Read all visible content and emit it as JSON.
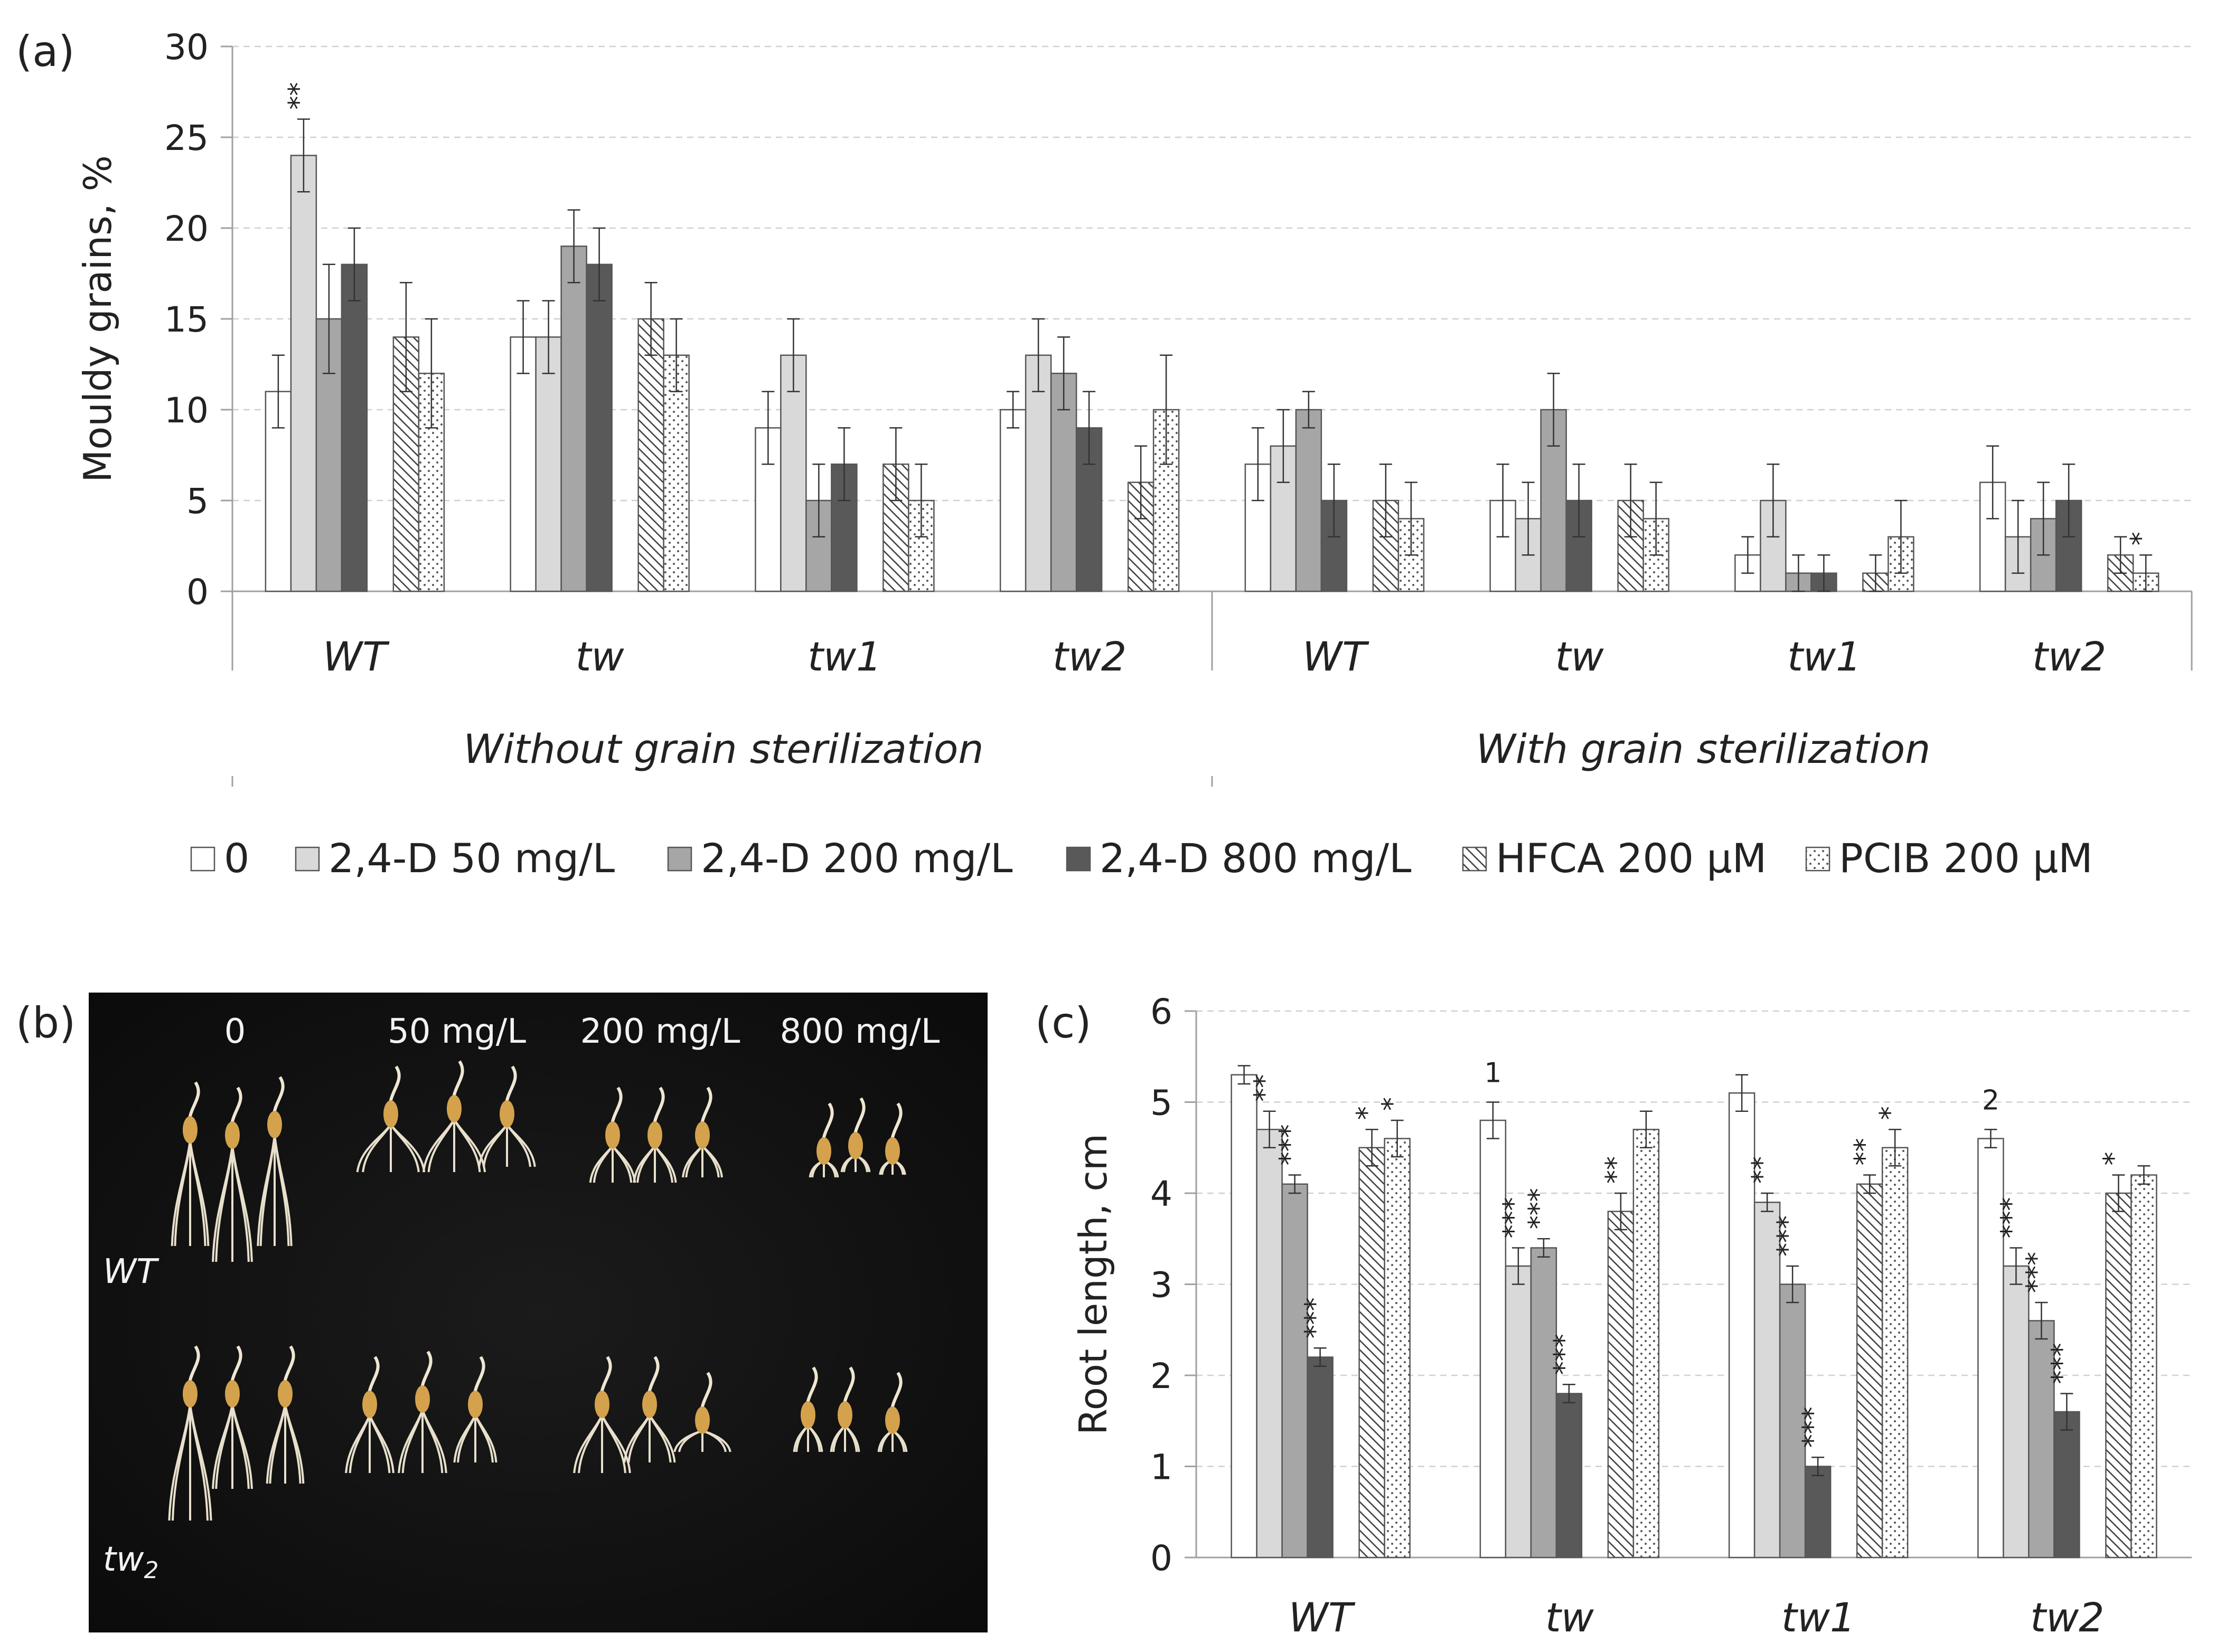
{
  "figure": {
    "panel_a_label": "(a)",
    "panel_b_label": "(b)",
    "panel_c_label": "(c)"
  },
  "legend": {
    "items": [
      {
        "label": "0",
        "pattern": "white"
      },
      {
        "label": "2,4-D 50 mg/L",
        "pattern": "light"
      },
      {
        "label": "2,4-D 200 mg/L",
        "pattern": "medium"
      },
      {
        "label": "2,4-D 800 mg/L",
        "pattern": "dark"
      },
      {
        "label": "HFCA 200 µM",
        "pattern": "hatch"
      },
      {
        "label": "PCIB 200 µM",
        "pattern": "dots"
      }
    ]
  },
  "colors": {
    "white": "#ffffff",
    "light": "#d9d9d9",
    "medium": "#a6a6a6",
    "dark": "#595959",
    "axis": "#a0a0a0",
    "grid": "#d0d0d0"
  },
  "photo": {
    "column_labels": [
      "0",
      "50 mg/L",
      "200 mg/L",
      "800 mg/L"
    ],
    "row_label_wt": "WT",
    "row_label_tw2": "tw",
    "row_label_tw2_sub": "2"
  },
  "chart_data": [
    {
      "type": "bar",
      "panel": "a",
      "title": "",
      "ylabel": "Mouldy grains, %",
      "xlabel": "",
      "ylim": [
        0,
        30
      ],
      "yticks": [
        0,
        5,
        10,
        15,
        20,
        25,
        30
      ],
      "grid": true,
      "categories": [
        "WT",
        "tw",
        "tw1",
        "tw2",
        "WT",
        "tw",
        "tw1",
        "tw2"
      ],
      "groups": [
        "Without grain sterilization",
        "With grain sterilization"
      ],
      "series": [
        {
          "name": "0",
          "values": [
            11,
            14,
            9,
            10,
            7,
            5,
            2,
            6
          ],
          "errors": [
            2,
            2,
            2,
            1,
            2,
            2,
            1,
            2
          ]
        },
        {
          "name": "2,4-D 50 mg/L",
          "values": [
            24,
            14,
            13,
            13,
            8,
            4,
            5,
            3
          ],
          "errors": [
            2,
            2,
            2,
            2,
            2,
            2,
            2,
            2
          ]
        },
        {
          "name": "2,4-D 200 mg/L",
          "values": [
            15,
            19,
            5,
            12,
            10,
            10,
            1,
            4
          ],
          "errors": [
            3,
            2,
            2,
            2,
            1,
            2,
            1,
            2
          ]
        },
        {
          "name": "2,4-D 800 mg/L",
          "values": [
            18,
            18,
            7,
            9,
            5,
            5,
            1,
            5
          ],
          "errors": [
            2,
            2,
            2,
            2,
            2,
            2,
            1,
            2
          ]
        },
        {
          "name": "HFCA 200 µM",
          "values": [
            14,
            15,
            7,
            6,
            5,
            5,
            1,
            2
          ],
          "errors": [
            3,
            2,
            2,
            2,
            2,
            2,
            1,
            1
          ]
        },
        {
          "name": "PCIB 200 µM",
          "values": [
            12,
            13,
            5,
            10,
            4,
            4,
            3,
            1
          ],
          "errors": [
            3,
            2,
            2,
            3,
            2,
            2,
            2,
            1
          ]
        }
      ],
      "annotations": [
        {
          "category_index": 0,
          "series_index": 1,
          "text": "**"
        },
        {
          "category_index": 7,
          "series_index": 5,
          "text": "*"
        }
      ]
    },
    {
      "type": "bar",
      "panel": "c",
      "title": "",
      "ylabel": "Root  length, cm",
      "xlabel": "",
      "ylim": [
        0,
        6
      ],
      "yticks": [
        0,
        1,
        2,
        3,
        4,
        5,
        6
      ],
      "grid": true,
      "categories": [
        "WT",
        "tw",
        "tw1",
        "tw2"
      ],
      "series": [
        {
          "name": "0",
          "values": [
            5.3,
            4.8,
            5.1,
            4.6
          ],
          "errors": [
            0.1,
            0.2,
            0.2,
            0.1
          ]
        },
        {
          "name": "2,4-D 50 mg/L",
          "values": [
            4.7,
            3.2,
            3.9,
            3.2
          ],
          "errors": [
            0.2,
            0.2,
            0.1,
            0.2
          ]
        },
        {
          "name": "2,4-D 200 mg/L",
          "values": [
            4.1,
            3.4,
            3.0,
            2.6
          ],
          "errors": [
            0.1,
            0.1,
            0.2,
            0.2
          ]
        },
        {
          "name": "2,4-D 800 mg/L",
          "values": [
            2.2,
            1.8,
            1.0,
            1.6
          ],
          "errors": [
            0.1,
            0.1,
            0.1,
            0.2
          ]
        },
        {
          "name": "HFCA 200 µM",
          "values": [
            4.5,
            3.8,
            4.1,
            4.0
          ],
          "errors": [
            0.2,
            0.2,
            0.1,
            0.2
          ]
        },
        {
          "name": "PCIB 200 µM",
          "values": [
            4.6,
            4.7,
            4.5,
            4.2
          ],
          "errors": [
            0.2,
            0.2,
            0.2,
            0.1
          ]
        }
      ],
      "annotations": [
        {
          "category_index": 0,
          "series_index": 1,
          "text": "**"
        },
        {
          "category_index": 0,
          "series_index": 2,
          "text": "***"
        },
        {
          "category_index": 0,
          "series_index": 3,
          "text": "***"
        },
        {
          "category_index": 0,
          "series_index": 4,
          "text": "*"
        },
        {
          "category_index": 0,
          "series_index": 5,
          "text": "*"
        },
        {
          "category_index": 1,
          "series_index": 0,
          "text": "1"
        },
        {
          "category_index": 1,
          "series_index": 1,
          "text": "***"
        },
        {
          "category_index": 1,
          "series_index": 2,
          "text": "***"
        },
        {
          "category_index": 1,
          "series_index": 3,
          "text": "***"
        },
        {
          "category_index": 1,
          "series_index": 4,
          "text": "**"
        },
        {
          "category_index": 2,
          "series_index": 1,
          "text": "**"
        },
        {
          "category_index": 2,
          "series_index": 2,
          "text": "***"
        },
        {
          "category_index": 2,
          "series_index": 3,
          "text": "***"
        },
        {
          "category_index": 2,
          "series_index": 4,
          "text": "**"
        },
        {
          "category_index": 2,
          "series_index": 5,
          "text": "*"
        },
        {
          "category_index": 3,
          "series_index": 0,
          "text": "2"
        },
        {
          "category_index": 3,
          "series_index": 1,
          "text": "***"
        },
        {
          "category_index": 3,
          "series_index": 2,
          "text": "***"
        },
        {
          "category_index": 3,
          "series_index": 3,
          "text": "***"
        },
        {
          "category_index": 3,
          "series_index": 4,
          "text": "*"
        }
      ]
    }
  ]
}
